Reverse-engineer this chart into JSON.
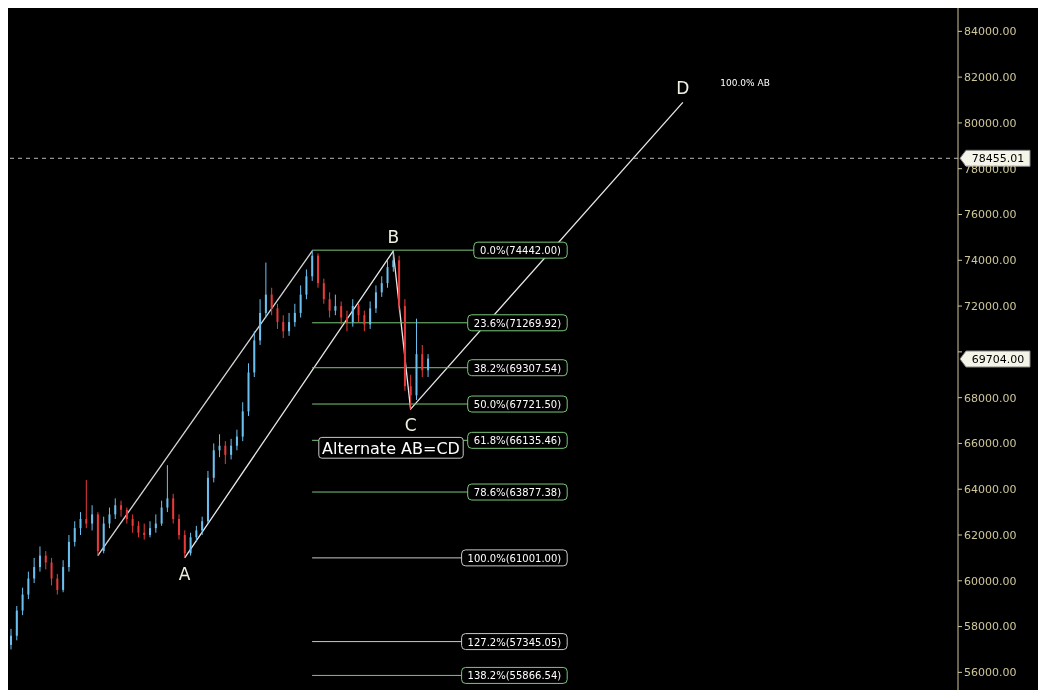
{
  "chart_data": {
    "type": "candlestick",
    "categories": [
      null,
      null,
      null,
      null,
      null,
      null,
      null,
      null,
      null,
      null,
      null,
      null,
      null,
      null,
      null,
      null,
      null,
      null,
      null,
      null,
      null,
      null,
      null,
      null,
      null,
      null,
      null,
      null,
      null,
      null,
      null,
      null,
      null,
      null,
      null,
      null,
      null,
      null,
      null,
      null,
      null,
      null,
      null,
      null,
      null,
      null,
      null,
      null,
      null,
      null,
      null,
      null,
      null,
      null,
      null,
      null,
      null,
      null,
      null,
      null,
      null,
      null,
      null,
      null,
      null,
      null,
      null,
      null,
      null,
      null,
      null,
      null,
      null,
      null,
      null,
      null,
      null,
      null,
      null,
      null,
      null,
      null,
      null,
      null,
      null,
      null,
      null,
      null,
      null,
      null,
      null,
      null,
      null,
      null,
      null,
      null,
      null,
      null,
      null,
      null,
      null,
      null,
      null,
      null,
      null,
      null,
      null,
      null,
      null,
      null,
      null,
      null,
      null,
      null,
      null,
      null,
      null,
      null,
      null,
      null,
      null,
      null,
      null,
      null,
      null,
      null,
      null,
      null,
      null,
      null,
      null,
      null,
      null,
      null,
      null,
      null,
      null,
      null,
      null,
      null,
      null,
      null,
      null,
      null,
      null,
      null,
      null,
      null,
      null,
      null,
      null,
      null,
      null,
      null,
      null,
      null,
      null,
      null,
      null,
      null,
      null,
      null,
      null,
      null
    ],
    "ohlc": [
      [
        57200,
        57900,
        57000,
        57600
      ],
      [
        57600,
        58900,
        57400,
        58700
      ],
      [
        58700,
        59700,
        58500,
        59400
      ],
      [
        59400,
        60400,
        59200,
        60100
      ],
      [
        60100,
        61000,
        59900,
        60600
      ],
      [
        60600,
        61500,
        60400,
        61100
      ],
      [
        61100,
        61300,
        60500,
        60800
      ],
      [
        60800,
        61000,
        59800,
        60100
      ],
      [
        60100,
        60300,
        59400,
        59600
      ],
      [
        59600,
        60900,
        59500,
        60600
      ],
      [
        60600,
        62000,
        60400,
        61700
      ],
      [
        61700,
        62600,
        61500,
        62300
      ],
      [
        62300,
        63000,
        62000,
        62700
      ],
      [
        62700,
        64400,
        62300,
        62500
      ],
      [
        62500,
        63300,
        62200,
        62900
      ],
      [
        62900,
        63000,
        61100,
        61300
      ],
      [
        61300,
        62800,
        61200,
        62500
      ],
      [
        62500,
        63200,
        62300,
        62900
      ],
      [
        62900,
        63600,
        62700,
        63300
      ],
      [
        63300,
        63500,
        62800,
        63100
      ],
      [
        63100,
        63200,
        62500,
        62700
      ],
      [
        62700,
        62900,
        62100,
        62400
      ],
      [
        62400,
        62600,
        61900,
        62100
      ],
      [
        62100,
        62500,
        61800,
        62000
      ],
      [
        62000,
        62600,
        61900,
        62300
      ],
      [
        62300,
        62900,
        62100,
        62500
      ],
      [
        62500,
        63500,
        62400,
        63200
      ],
      [
        63200,
        65050,
        63000,
        63600
      ],
      [
        63600,
        63800,
        62500,
        62700
      ],
      [
        62700,
        62900,
        61800,
        62000
      ],
      [
        62000,
        62200,
        61001,
        61200
      ],
      [
        61200,
        62100,
        61100,
        61900
      ],
      [
        61900,
        62400,
        61700,
        62200
      ],
      [
        62200,
        62800,
        62000,
        62600
      ],
      [
        62600,
        64800,
        62500,
        64500
      ],
      [
        64500,
        66000,
        64300,
        65700
      ],
      [
        65700,
        66400,
        65400,
        65900
      ],
      [
        65900,
        66100,
        65100,
        65500
      ],
      [
        65500,
        66200,
        65300,
        65900
      ],
      [
        65900,
        66600,
        65700,
        66300
      ],
      [
        66300,
        67800,
        66100,
        67400
      ],
      [
        67400,
        69500,
        67200,
        69100
      ],
      [
        69100,
        70900,
        68900,
        70500
      ],
      [
        70500,
        72300,
        70300,
        71700
      ],
      [
        71700,
        73900,
        71500,
        72500
      ],
      [
        72500,
        72800,
        71600,
        71900
      ],
      [
        71900,
        72100,
        71000,
        71300
      ],
      [
        71300,
        71600,
        70600,
        70900
      ],
      [
        70900,
        71700,
        70700,
        71300
      ],
      [
        71300,
        72100,
        71100,
        71700
      ],
      [
        71700,
        72900,
        71500,
        72500
      ],
      [
        72500,
        73600,
        72300,
        73300
      ],
      [
        73300,
        74442,
        73100,
        74200
      ],
      [
        74200,
        74300,
        72800,
        73000
      ],
      [
        73000,
        73200,
        72100,
        72300
      ],
      [
        72300,
        72600,
        71500,
        71800
      ],
      [
        71800,
        72500,
        71600,
        72000
      ],
      [
        72000,
        72200,
        71200,
        71500
      ],
      [
        71500,
        71800,
        70900,
        71300
      ],
      [
        71300,
        72300,
        71100,
        72000
      ],
      [
        72000,
        72100,
        71300,
        71600
      ],
      [
        71600,
        71800,
        70900,
        71200
      ],
      [
        71200,
        72200,
        71000,
        71900
      ],
      [
        71900,
        72900,
        71700,
        72600
      ],
      [
        72600,
        73300,
        72400,
        73000
      ],
      [
        73000,
        74000,
        72800,
        73700
      ],
      [
        73700,
        74442,
        73500,
        74000
      ],
      [
        74000,
        74200,
        71800,
        72000
      ],
      [
        72000,
        72300,
        68300,
        68500
      ],
      [
        68500,
        69000,
        67500,
        68100
      ],
      [
        68100,
        71450,
        67900,
        69900
      ],
      [
        69900,
        70300,
        68900,
        69200
      ],
      [
        69200,
        69900,
        68900,
        69704
      ],
      null,
      null,
      null,
      null,
      null,
      null,
      null,
      null,
      null,
      null,
      null,
      null,
      null,
      null,
      null,
      null,
      null,
      null,
      null,
      null,
      null,
      null,
      null,
      null,
      null,
      null,
      null,
      null,
      null,
      null,
      null,
      null,
      null,
      null,
      null,
      null,
      null,
      null,
      null,
      null,
      null,
      null,
      null,
      null,
      null,
      null,
      null,
      null,
      null,
      null,
      null,
      null,
      null,
      null,
      null,
      null,
      null,
      null,
      null,
      null,
      null,
      null,
      null,
      null,
      null,
      null,
      null,
      null,
      null,
      null,
      null,
      null,
      null,
      null,
      null,
      null,
      null,
      null,
      null,
      null,
      null,
      null,
      null,
      null,
      null,
      null,
      null,
      null,
      null,
      null,
      null
    ],
    "series": [
      {
        "type": "line",
        "color": "#e8e8e8",
        "values": [
          null,
          null,
          null,
          null,
          null,
          null,
          null,
          null,
          null,
          null,
          null,
          null,
          null,
          null,
          null,
          null,
          null,
          null,
          null,
          null,
          null,
          null,
          null,
          null,
          null,
          null,
          null,
          null,
          null,
          null,
          61000,
          null,
          null,
          null,
          null,
          null,
          null,
          null,
          null,
          null,
          null,
          null,
          null,
          null,
          null,
          null,
          null,
          null,
          null,
          null,
          null,
          null,
          null,
          null,
          null,
          null,
          null,
          null,
          null,
          null,
          null,
          null,
          null,
          null,
          null,
          null,
          74400,
          null,
          null,
          67500,
          null,
          null,
          null,
          null,
          null,
          null,
          null,
          null,
          null,
          null,
          null,
          null,
          null,
          null,
          null,
          null,
          null,
          null,
          null,
          null,
          null,
          null,
          null,
          null,
          null,
          null,
          null,
          null,
          null,
          null,
          null,
          null,
          null,
          null,
          null,
          null,
          null,
          null,
          null,
          null,
          null,
          null,
          null,
          null,
          null,
          null,
          80900,
          null,
          null,
          null,
          null,
          null,
          null,
          null,
          null,
          null,
          null,
          null,
          null,
          null,
          null,
          null,
          null,
          null,
          null,
          null,
          null,
          null,
          null,
          null,
          null,
          null,
          null,
          null,
          null,
          null,
          null,
          null,
          null,
          null,
          null,
          null,
          null,
          null,
          null,
          null,
          null,
          null,
          null,
          null,
          null,
          null,
          null,
          null
        ],
        "value_labels": [
          null,
          null,
          null,
          null,
          null,
          null,
          null,
          null,
          null,
          null,
          null,
          null,
          null,
          null,
          null,
          null,
          null,
          null,
          null,
          null,
          null,
          null,
          null,
          null,
          null,
          null,
          null,
          null,
          null,
          null,
          "A",
          null,
          null,
          null,
          null,
          null,
          null,
          null,
          null,
          null,
          null,
          null,
          null,
          null,
          null,
          null,
          null,
          null,
          null,
          null,
          null,
          null,
          null,
          null,
          null,
          null,
          null,
          null,
          null,
          null,
          null,
          null,
          null,
          null,
          null,
          null,
          "B",
          null,
          null,
          "C",
          null,
          null,
          null,
          null,
          null,
          null,
          null,
          null,
          null,
          null,
          null,
          null,
          null,
          null,
          null,
          null,
          null,
          null,
          null,
          null,
          null,
          null,
          null,
          null,
          null,
          null,
          null,
          null,
          null,
          null,
          null,
          null,
          null,
          null,
          null,
          null,
          null,
          null,
          null,
          null,
          null,
          null,
          null,
          null,
          null,
          null,
          "D",
          null,
          null,
          null,
          null,
          null,
          null,
          null,
          null,
          null,
          null,
          null,
          null,
          null,
          null,
          null,
          null,
          null,
          null,
          null,
          null,
          null,
          null,
          null,
          null,
          null,
          null,
          null,
          null,
          null,
          null,
          null,
          null,
          null,
          null,
          null,
          null,
          null,
          null,
          null,
          null,
          null,
          null,
          null,
          null,
          null,
          null,
          null
        ]
      },
      {
        "type": "line",
        "color": "#d8d8d8",
        "values": [
          null,
          null,
          null,
          null,
          null,
          null,
          null,
          null,
          null,
          null,
          null,
          null,
          null,
          null,
          null,
          61100,
          null,
          null,
          null,
          null,
          null,
          null,
          null,
          null,
          null,
          null,
          null,
          null,
          null,
          null,
          null,
          null,
          null,
          null,
          null,
          null,
          null,
          null,
          null,
          null,
          null,
          null,
          null,
          null,
          null,
          null,
          null,
          null,
          null,
          null,
          null,
          null,
          74400,
          null,
          null,
          null,
          null,
          null,
          null,
          null,
          null,
          null,
          null,
          null,
          null,
          null,
          null,
          null,
          null,
          null,
          null,
          null,
          null,
          null,
          null,
          null,
          null,
          null,
          null,
          null,
          null,
          null,
          null,
          null,
          null,
          null,
          null,
          null,
          null,
          null,
          null,
          null,
          null,
          null,
          null,
          null,
          null,
          null,
          null,
          null,
          null,
          null,
          null,
          null,
          null,
          null,
          null,
          null,
          null,
          null,
          null,
          null,
          null,
          null,
          null,
          null,
          null,
          null,
          null,
          null,
          null,
          null,
          null,
          null,
          null,
          null,
          null,
          null,
          null,
          null,
          null,
          null,
          null,
          null,
          null,
          null,
          null,
          null,
          null,
          null,
          null,
          null,
          null,
          null,
          null,
          null,
          null,
          null,
          null,
          null,
          null,
          null,
          null,
          null,
          null,
          null,
          null,
          null,
          null,
          null,
          null,
          null,
          null,
          null
        ]
      }
    ],
    "ylim": [
      55230,
      85020
    ],
    "yticks": [
      {
        "value": 56000,
        "label": "56000.00"
      },
      {
        "value": 58000,
        "label": "58000.00"
      },
      {
        "value": 60000,
        "label": "60000.00"
      },
      {
        "value": 62000,
        "label": "62000.00"
      },
      {
        "value": 64000,
        "label": "64000.00"
      },
      {
        "value": 66000,
        "label": "66000.00"
      },
      {
        "value": 68000,
        "label": "68000.00"
      },
      {
        "value": 70000,
        "label": null
      },
      {
        "value": 72000,
        "label": "72000.00"
      },
      {
        "value": 74000,
        "label": "74000.00"
      },
      {
        "value": 76000,
        "label": "76000.00"
      },
      {
        "value": 78000,
        "label": "78000.00"
      },
      {
        "value": 80000,
        "label": "80000.00"
      },
      {
        "value": 82000,
        "label": "82000.00"
      },
      {
        "value": 84000,
        "label": "84000.00"
      }
    ],
    "ref_lines": [
      {
        "axis": "y",
        "value": 74442,
        "label": "0.0%(74442.00)",
        "color": "#78c878"
      },
      {
        "axis": "y",
        "value": 71269.92,
        "label": "23.6%(71269.92)",
        "color": "#78c878"
      },
      {
        "axis": "y",
        "value": 69307.54,
        "label": "38.2%(69307.54)",
        "color": "#78c878"
      },
      {
        "axis": "y",
        "value": 67721.5,
        "label": "50.0%(67721.50)",
        "color": "#78c878"
      },
      {
        "axis": "y",
        "value": 66135.46,
        "label": "61.8%(66135.46)",
        "color": "#78c878"
      },
      {
        "axis": "y",
        "value": 63877.38,
        "label": "78.6%(63877.38)",
        "color": "#78c878"
      },
      {
        "axis": "y",
        "value": 61001,
        "label": "100.0%(61001.00)",
        "color": "#c8c8c8"
      },
      {
        "axis": "y",
        "value": 57345.05,
        "label": "127.2%(57345.05)",
        "color": "#c8c8c8"
      },
      {
        "axis": "y",
        "value": 55866.54,
        "label": "138.2%(55866.54)",
        "color": "#78c878"
      },
      {
        "axis": "y",
        "value": 78455.01,
        "label": "78455.01",
        "color": "#b8b8b8",
        "line_style": "dashed"
      }
    ],
    "annotations": [
      "Alternate AB=CD",
      "100.0% AB",
      "69704.00"
    ]
  }
}
